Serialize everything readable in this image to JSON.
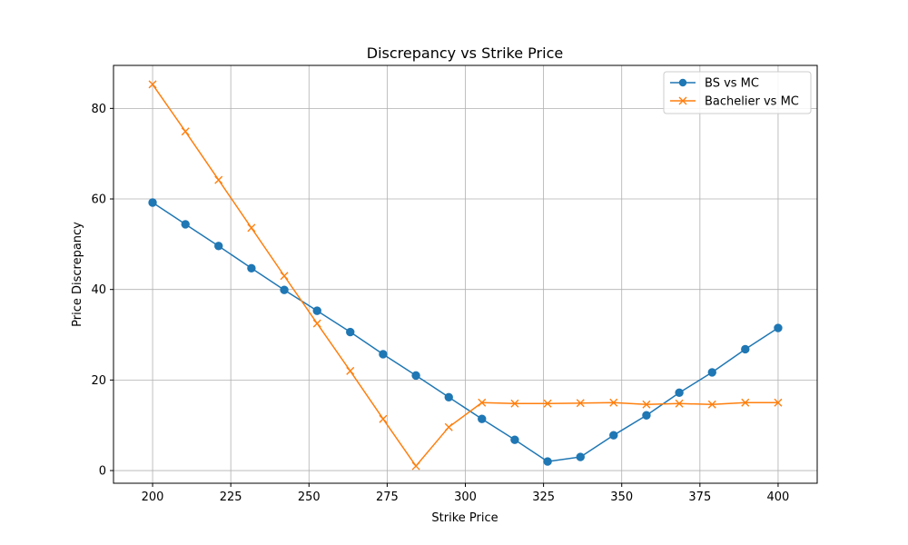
{
  "chart_data": {
    "type": "line",
    "title": "Discrepancy vs Strike Price",
    "xlabel": "Strike Price",
    "ylabel": "Price Discrepancy",
    "xlim": [
      187.5,
      412.5
    ],
    "ylim": [
      -2.8,
      89.5
    ],
    "grid": true,
    "legend_position": "top-right",
    "xticks": [
      200,
      225,
      250,
      275,
      300,
      325,
      350,
      375,
      400
    ],
    "yticks": [
      0,
      20,
      40,
      60,
      80
    ],
    "x": [
      200.0,
      210.5,
      221.1,
      231.6,
      242.1,
      252.6,
      263.2,
      273.7,
      284.2,
      294.7,
      305.3,
      315.8,
      326.3,
      336.8,
      347.4,
      357.9,
      368.4,
      378.9,
      389.5,
      400.0
    ],
    "series": [
      {
        "name": "BS vs MC",
        "color": "#1f77b4",
        "marker": "circle",
        "values": [
          59.2,
          54.4,
          49.6,
          44.7,
          39.9,
          35.3,
          30.6,
          25.7,
          21.0,
          16.2,
          11.4,
          6.8,
          2.0,
          3.0,
          7.8,
          12.2,
          17.2,
          21.7,
          26.8,
          31.5
        ]
      },
      {
        "name": "Bachelier vs MC",
        "color": "#ff7f0e",
        "marker": "x",
        "values": [
          85.3,
          74.9,
          64.2,
          53.6,
          43.0,
          32.5,
          22.0,
          11.4,
          1.0,
          9.6,
          15.0,
          14.8,
          14.8,
          14.9,
          15.0,
          14.6,
          14.8,
          14.6,
          15.0,
          15.0
        ]
      }
    ]
  }
}
